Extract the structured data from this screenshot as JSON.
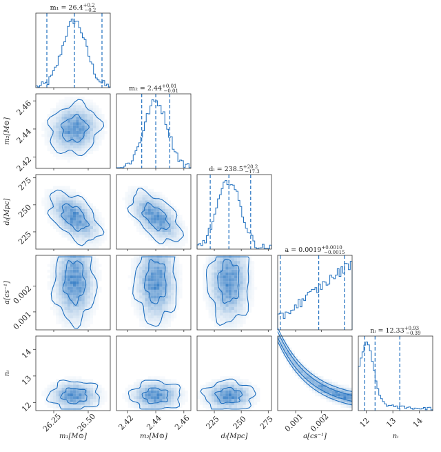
{
  "chart_data": {
    "type": "corner",
    "color": "#1f6fbf",
    "params": [
      {
        "name": "m1",
        "label": "m₁[M⊙]",
        "range": [
          26.12,
          26.66
        ],
        "ticks": [
          26.25,
          26.5
        ],
        "tick_labels": [
          "26.25",
          "26.50"
        ],
        "median": 26.4,
        "q16": 26.2,
        "q84": 26.6,
        "title": "m₁ = 26.4",
        "err_up": "+0.2",
        "err_dn": "−0.2"
      },
      {
        "name": "m2",
        "label": "m₂[M⊙]",
        "range": [
          2.412,
          2.465
        ],
        "ticks": [
          2.42,
          2.44,
          2.46
        ],
        "tick_labels": [
          "2.42",
          "2.44",
          "2.46"
        ],
        "median": 2.44,
        "q16": 2.43,
        "q84": 2.45,
        "title": "m₂ = 2.44",
        "err_up": "+0.01",
        "err_dn": "−0.01"
      },
      {
        "name": "dL",
        "label": "dₗ[Mpc]",
        "range": [
          209,
          278
        ],
        "ticks": [
          225,
          250,
          275
        ],
        "tick_labels": [
          "225",
          "250",
          "275"
        ],
        "median": 238.5,
        "q16": 221.2,
        "q84": 258.7,
        "title": "dₗ = 238.5",
        "err_up": "+20.2",
        "err_dn": "−17.3"
      },
      {
        "name": "a",
        "label": "a[cs⁻¹]",
        "range": [
          0.0003,
          0.0032
        ],
        "ticks": [
          0.001,
          0.002
        ],
        "tick_labels": [
          "0.001",
          "0.002"
        ],
        "median": 0.0019,
        "q16": 0.0004,
        "q84": 0.0029,
        "title": "a = 0.0019",
        "err_up": "+0.0010",
        "err_dn": "−0.0015"
      },
      {
        "name": "ni",
        "label": "nᵢ",
        "range": [
          11.7,
          14.5
        ],
        "ticks": [
          12,
          13,
          14
        ],
        "tick_labels": [
          "12",
          "13",
          "14"
        ],
        "median": 12.33,
        "q16": 11.94,
        "q84": 13.26,
        "title": "nᵢ = 12.33",
        "err_up": "+0.93",
        "err_dn": "−0.39"
      }
    ],
    "correlations": {
      "m1-m2": 0.1,
      "m1-dL": -0.5,
      "m1-a": 0.0,
      "m1-ni": 0.0,
      "m2-dL": -0.55,
      "m2-a": 0.0,
      "m2-ni": 0.0,
      "dL-a": 0.0,
      "dL-ni": 0.0,
      "a-ni": -0.95
    }
  }
}
